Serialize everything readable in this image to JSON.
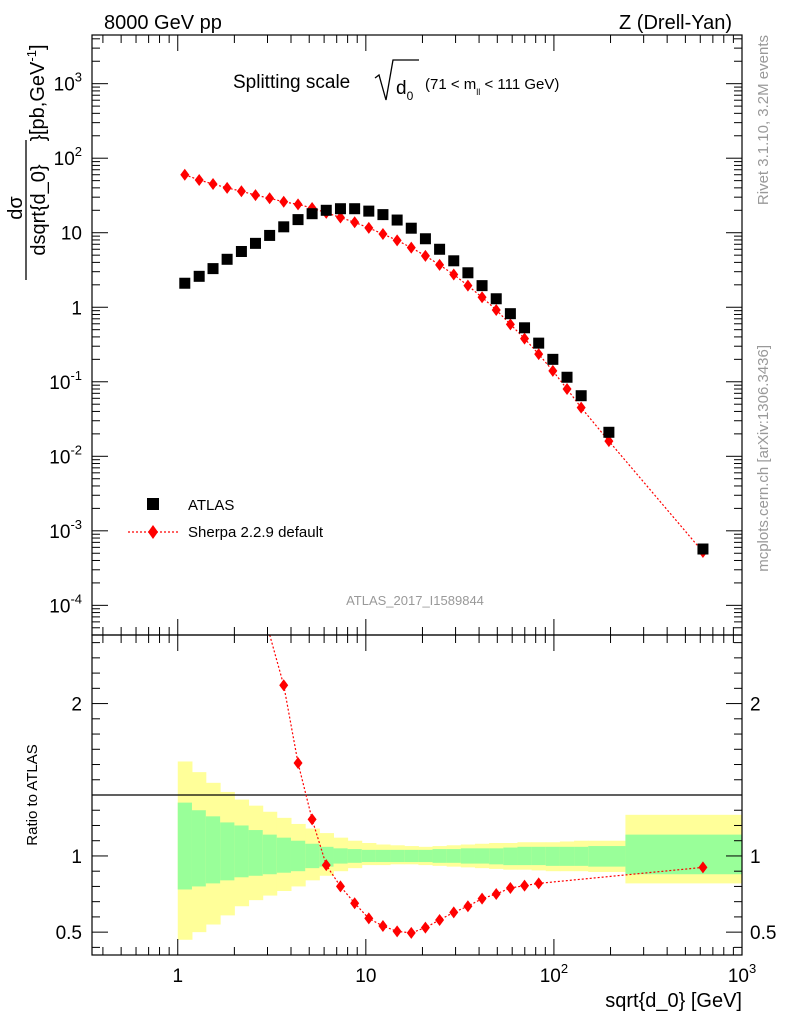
{
  "header": {
    "left": "8000 GeV pp",
    "right": "Z (Drell-Yan)"
  },
  "side": {
    "rivet": "Rivet 3.1.10,  3.2M events",
    "mcplots": "mcplots.cern.ch [arXiv:1306.3436]"
  },
  "title": {
    "main": "Splitting scale",
    "var": "d",
    "sub": "0",
    "range_pre": "(71 < m",
    "range_sub": "ll",
    "range_post": " < 111 GeV)"
  },
  "analysis_id": "ATLAS_2017_I1589844",
  "ylabel_top": {
    "num": "dσ",
    "den": "dsqrt{d_0}",
    "unit_pre": "[pb,GeV",
    "unit_sup": "-1",
    "unit_post": "]"
  },
  "ylabel_bottom": "Ratio to ATLAS",
  "xlabel": "sqrt{d_0} [GeV]",
  "legend": {
    "data_label": "ATLAS",
    "mc_label": "Sherpa 2.2.9 default"
  },
  "ticks": {
    "x": [
      {
        "v": 1,
        "base": "1"
      },
      {
        "v": 10,
        "base": "10"
      },
      {
        "v": 100,
        "base": "10",
        "exp": "2"
      },
      {
        "v": 1000,
        "base": "10",
        "exp": "3"
      }
    ],
    "y_top": [
      {
        "v": 0.0001,
        "base": "10",
        "exp": "-4"
      },
      {
        "v": 0.001,
        "base": "10",
        "exp": "-3"
      },
      {
        "v": 0.01,
        "base": "10",
        "exp": "-2"
      },
      {
        "v": 0.1,
        "base": "10",
        "exp": "-1"
      },
      {
        "v": 1,
        "base": "1"
      },
      {
        "v": 10,
        "base": "10"
      },
      {
        "v": 100,
        "base": "10",
        "exp": "2"
      },
      {
        "v": 1000,
        "base": "10",
        "exp": "3"
      }
    ],
    "y_bottom": [
      {
        "v": 0.5,
        "label": "0.5"
      },
      {
        "v": 1,
        "label": "1"
      },
      {
        "v": 2,
        "label": "2"
      }
    ]
  },
  "colors": {
    "data": "#000000",
    "mc": "#ff0000",
    "band_inner": "#99ff99",
    "band_outer": "#ffff99",
    "secondary_text": "#999999"
  },
  "chart_data": {
    "type": "scatter",
    "xscale": "log",
    "xlim": [
      0.35,
      1000
    ],
    "top": {
      "yscale": "log",
      "ylim": [
        4e-05,
        4500
      ],
      "ylabel": "dσ/dsqrt{d_0} [pb,GeV^-1]"
    },
    "bottom": {
      "ylim": [
        0.35,
        2.45
      ],
      "ylabel": "Ratio to ATLAS"
    },
    "bin_edges": [
      1.0,
      1.19,
      1.41,
      1.68,
      2.0,
      2.38,
      2.83,
      3.36,
      4.0,
      4.76,
      5.66,
      6.73,
      8.0,
      9.51,
      11.31,
      13.45,
      16.0,
      19.03,
      22.63,
      26.91,
      32.0,
      38.05,
      45.25,
      53.82,
      64.0,
      76.11,
      90.51,
      107.63,
      128.0,
      152.2,
      240.0,
      1000.0
    ],
    "series": [
      {
        "name": "ATLAS",
        "marker": "square",
        "x": [
          1.09,
          1.3,
          1.54,
          1.83,
          2.18,
          2.59,
          3.08,
          3.66,
          4.36,
          5.18,
          6.16,
          7.33,
          8.72,
          10.37,
          12.33,
          14.67,
          17.44,
          20.74,
          24.67,
          29.34,
          34.89,
          41.49,
          49.35,
          58.69,
          69.79,
          83.0,
          98.7,
          117.4,
          139.6,
          196.0,
          620.0
        ],
        "y": [
          2.1,
          2.6,
          3.3,
          4.4,
          5.6,
          7.2,
          9.2,
          12.0,
          15.0,
          18.0,
          20.0,
          21.0,
          21.0,
          19.5,
          17.5,
          14.8,
          11.5,
          8.3,
          6.0,
          4.2,
          2.9,
          1.95,
          1.3,
          0.82,
          0.53,
          0.33,
          0.2,
          0.115,
          0.065,
          0.021,
          0.00057
        ]
      },
      {
        "name": "Sherpa 2.2.9 default",
        "marker": "diamond",
        "line": "dotted",
        "x": [
          1.09,
          1.3,
          1.54,
          1.83,
          2.18,
          2.59,
          3.08,
          3.66,
          4.36,
          5.18,
          6.16,
          7.33,
          8.72,
          10.37,
          12.33,
          14.67,
          17.44,
          20.74,
          24.67,
          29.34,
          34.89,
          41.49,
          49.35,
          58.69,
          69.79,
          83.0,
          98.7,
          117.4,
          139.6,
          196.0,
          620.0
        ],
        "y": [
          60.0,
          51.0,
          45.0,
          40.0,
          36.0,
          32.0,
          29.0,
          26.0,
          24.0,
          21.5,
          18.5,
          16.0,
          13.8,
          11.6,
          9.6,
          7.9,
          6.3,
          4.9,
          3.7,
          2.75,
          1.95,
          1.36,
          0.92,
          0.59,
          0.38,
          0.235,
          0.14,
          0.08,
          0.045,
          0.016,
          0.00052
        ]
      }
    ],
    "ratio": {
      "x": [
        3.66,
        4.36,
        5.18,
        6.16,
        7.33,
        8.72,
        10.37,
        12.33,
        14.67,
        17.44,
        20.74,
        24.67,
        29.34,
        34.89,
        41.49,
        49.35,
        58.69,
        69.79,
        83.0,
        620.0
      ],
      "y": [
        2.12,
        1.61,
        1.24,
        0.94,
        0.8,
        0.69,
        0.59,
        0.54,
        0.505,
        0.495,
        0.53,
        0.58,
        0.63,
        0.67,
        0.72,
        0.75,
        0.79,
        0.805,
        0.82,
        0.925
      ]
    },
    "band_inner": {
      "up": [
        1.35,
        1.3,
        1.26,
        1.22,
        1.2,
        1.17,
        1.14,
        1.12,
        1.1,
        1.08,
        1.06,
        1.05,
        1.045,
        1.04,
        1.04,
        1.04,
        1.04,
        1.04,
        1.045,
        1.045,
        1.05,
        1.05,
        1.05,
        1.055,
        1.06,
        1.06,
        1.06,
        1.06,
        1.06,
        1.065,
        1.14
      ],
      "down": [
        0.78,
        0.8,
        0.82,
        0.84,
        0.86,
        0.87,
        0.88,
        0.89,
        0.9,
        0.92,
        0.93,
        0.95,
        0.955,
        0.96,
        0.96,
        0.96,
        0.96,
        0.96,
        0.955,
        0.955,
        0.95,
        0.95,
        0.945,
        0.94,
        0.94,
        0.94,
        0.935,
        0.935,
        0.935,
        0.93,
        0.88
      ]
    },
    "band_outer": {
      "up": [
        1.62,
        1.55,
        1.48,
        1.42,
        1.37,
        1.33,
        1.29,
        1.25,
        1.21,
        1.18,
        1.15,
        1.12,
        1.1,
        1.085,
        1.075,
        1.07,
        1.065,
        1.06,
        1.065,
        1.07,
        1.075,
        1.08,
        1.085,
        1.085,
        1.09,
        1.09,
        1.09,
        1.095,
        1.1,
        1.1,
        1.27
      ],
      "down": [
        0.45,
        0.5,
        0.55,
        0.61,
        0.67,
        0.71,
        0.74,
        0.77,
        0.8,
        0.84,
        0.87,
        0.9,
        0.92,
        0.94,
        0.94,
        0.945,
        0.945,
        0.94,
        0.935,
        0.93,
        0.925,
        0.92,
        0.915,
        0.91,
        0.91,
        0.905,
        0.9,
        0.9,
        0.9,
        0.895,
        0.82
      ]
    }
  }
}
